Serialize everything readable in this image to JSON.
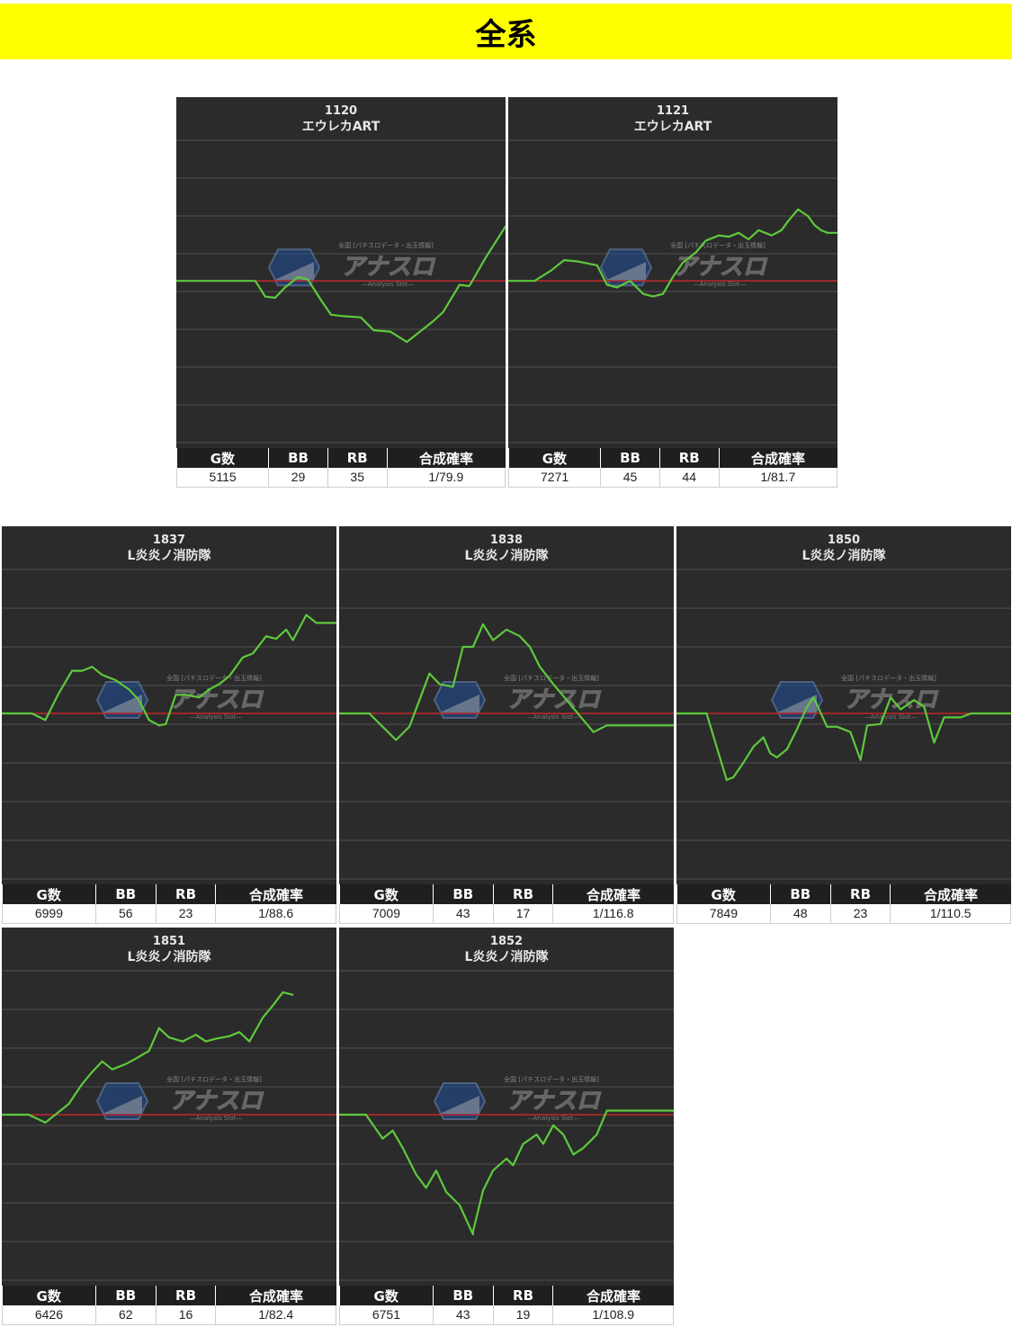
{
  "page_title": "全系",
  "headers": {
    "games": "G数",
    "bb": "BB",
    "rb": "RB",
    "rate": "合成確率"
  },
  "watermark": {
    "logo": "アナスロ",
    "sub": "—Analysis Slot—",
    "tag": "全国 [パチスロデータ・出玉情報]"
  },
  "colors": {
    "banner": "#ffff00",
    "plot_bg": "#2b2b2b",
    "line": "#5ec93c",
    "baseline": "#c0282d",
    "grid": "#444444"
  },
  "chart_data": [
    {
      "type": "line",
      "machine_no": "1120",
      "machine_name": "エウレカART",
      "stats": {
        "games": "5115",
        "bb": "29",
        "rb": "35",
        "rate": "1/79.9"
      },
      "x_range": [
        0,
        1
      ],
      "ylim": [
        -1,
        1
      ],
      "points": [
        [
          0,
          0
        ],
        [
          0.24,
          0
        ],
        [
          0.27,
          -0.12
        ],
        [
          0.3,
          -0.13
        ],
        [
          0.33,
          -0.05
        ],
        [
          0.37,
          0.03
        ],
        [
          0.4,
          0.01
        ],
        [
          0.44,
          -0.15
        ],
        [
          0.47,
          -0.26
        ],
        [
          0.5,
          -0.27
        ],
        [
          0.56,
          -0.28
        ],
        [
          0.6,
          -0.38
        ],
        [
          0.65,
          -0.39
        ],
        [
          0.7,
          -0.47
        ],
        [
          0.73,
          -0.41
        ],
        [
          0.78,
          -0.31
        ],
        [
          0.81,
          -0.24
        ],
        [
          0.86,
          -0.03
        ],
        [
          0.89,
          -0.04
        ],
        [
          0.94,
          0.18
        ],
        [
          1,
          0.42
        ]
      ]
    },
    {
      "type": "line",
      "machine_no": "1121",
      "machine_name": "エウレカART",
      "stats": {
        "games": "7271",
        "bb": "45",
        "rb": "44",
        "rate": "1/81.7"
      },
      "x_range": [
        0,
        1
      ],
      "ylim": [
        -1,
        1
      ],
      "points": [
        [
          0,
          0
        ],
        [
          0.08,
          0
        ],
        [
          0.13,
          0.08
        ],
        [
          0.17,
          0.16
        ],
        [
          0.21,
          0.15
        ],
        [
          0.27,
          0.12
        ],
        [
          0.3,
          -0.03
        ],
        [
          0.33,
          -0.05
        ],
        [
          0.37,
          0
        ],
        [
          0.41,
          -0.1
        ],
        [
          0.44,
          -0.12
        ],
        [
          0.47,
          -0.1
        ],
        [
          0.5,
          0.03
        ],
        [
          0.53,
          0.14
        ],
        [
          0.57,
          0.22
        ],
        [
          0.6,
          0.31
        ],
        [
          0.64,
          0.35
        ],
        [
          0.67,
          0.34
        ],
        [
          0.7,
          0.37
        ],
        [
          0.73,
          0.32
        ],
        [
          0.76,
          0.39
        ],
        [
          0.8,
          0.35
        ],
        [
          0.83,
          0.39
        ],
        [
          0.85,
          0.46
        ],
        [
          0.88,
          0.55
        ],
        [
          0.91,
          0.5
        ],
        [
          0.93,
          0.43
        ],
        [
          0.95,
          0.39
        ],
        [
          0.97,
          0.37
        ],
        [
          1,
          0.37
        ]
      ]
    },
    {
      "type": "line",
      "machine_no": "1837",
      "machine_name": "L炎炎ノ消防隊",
      "stats": {
        "games": "6999",
        "bb": "56",
        "rb": "23",
        "rate": "1/88.6"
      },
      "x_range": [
        0,
        1
      ],
      "ylim": [
        -1,
        1
      ],
      "points": [
        [
          0,
          0
        ],
        [
          0.09,
          0
        ],
        [
          0.13,
          -0.05
        ],
        [
          0.17,
          0.15
        ],
        [
          0.21,
          0.32
        ],
        [
          0.24,
          0.32
        ],
        [
          0.27,
          0.35
        ],
        [
          0.3,
          0.29
        ],
        [
          0.34,
          0.25
        ],
        [
          0.38,
          0.18
        ],
        [
          0.41,
          0.1
        ],
        [
          0.44,
          -0.05
        ],
        [
          0.47,
          -0.09
        ],
        [
          0.49,
          -0.08
        ],
        [
          0.52,
          0.14
        ],
        [
          0.55,
          0.14
        ],
        [
          0.59,
          0.12
        ],
        [
          0.62,
          0.18
        ],
        [
          0.65,
          0.22
        ],
        [
          0.68,
          0.28
        ],
        [
          0.72,
          0.42
        ],
        [
          0.75,
          0.45
        ],
        [
          0.79,
          0.58
        ],
        [
          0.82,
          0.56
        ],
        [
          0.85,
          0.63
        ],
        [
          0.87,
          0.55
        ],
        [
          0.91,
          0.74
        ],
        [
          0.94,
          0.68
        ],
        [
          1,
          0.68
        ]
      ]
    },
    {
      "type": "line",
      "machine_no": "1838",
      "machine_name": "L炎炎ノ消防隊",
      "stats": {
        "games": "7009",
        "bb": "43",
        "rb": "17",
        "rate": "1/116.8"
      },
      "x_range": [
        0,
        1
      ],
      "ylim": [
        -1,
        1
      ],
      "points": [
        [
          0,
          0
        ],
        [
          0.09,
          0
        ],
        [
          0.13,
          -0.1
        ],
        [
          0.17,
          -0.2
        ],
        [
          0.21,
          -0.1
        ],
        [
          0.24,
          0.1
        ],
        [
          0.27,
          0.3
        ],
        [
          0.3,
          0.22
        ],
        [
          0.34,
          0.2
        ],
        [
          0.37,
          0.5
        ],
        [
          0.4,
          0.5
        ],
        [
          0.43,
          0.67
        ],
        [
          0.46,
          0.55
        ],
        [
          0.5,
          0.63
        ],
        [
          0.54,
          0.58
        ],
        [
          0.57,
          0.5
        ],
        [
          0.6,
          0.35
        ],
        [
          0.64,
          0.22
        ],
        [
          0.68,
          0.1
        ],
        [
          0.72,
          -0.02
        ],
        [
          0.76,
          -0.14
        ],
        [
          0.8,
          -0.09
        ],
        [
          1,
          -0.09
        ]
      ]
    },
    {
      "type": "line",
      "machine_no": "1850",
      "machine_name": "L炎炎ノ消防隊",
      "stats": {
        "games": "7849",
        "bb": "48",
        "rb": "23",
        "rate": "1/110.5"
      },
      "x_range": [
        0,
        1
      ],
      "ylim": [
        -1,
        1
      ],
      "points": [
        [
          0,
          0
        ],
        [
          0.09,
          0
        ],
        [
          0.12,
          -0.25
        ],
        [
          0.15,
          -0.5
        ],
        [
          0.17,
          -0.48
        ],
        [
          0.2,
          -0.37
        ],
        [
          0.23,
          -0.25
        ],
        [
          0.26,
          -0.18
        ],
        [
          0.28,
          -0.3
        ],
        [
          0.3,
          -0.33
        ],
        [
          0.33,
          -0.27
        ],
        [
          0.36,
          -0.12
        ],
        [
          0.39,
          0.05
        ],
        [
          0.41,
          0.12
        ],
        [
          0.45,
          -0.1
        ],
        [
          0.48,
          -0.1
        ],
        [
          0.52,
          -0.14
        ],
        [
          0.55,
          -0.35
        ],
        [
          0.57,
          -0.09
        ],
        [
          0.61,
          -0.08
        ],
        [
          0.64,
          0.12
        ],
        [
          0.67,
          0.03
        ],
        [
          0.71,
          0.1
        ],
        [
          0.74,
          0.05
        ],
        [
          0.77,
          -0.22
        ],
        [
          0.8,
          -0.03
        ],
        [
          0.85,
          -0.03
        ],
        [
          0.88,
          0
        ],
        [
          1,
          0
        ]
      ]
    },
    {
      "type": "line",
      "machine_no": "1851",
      "machine_name": "L炎炎ノ消防隊",
      "stats": {
        "games": "6426",
        "bb": "62",
        "rb": "16",
        "rate": "1/82.4"
      },
      "x_range": [
        0,
        1
      ],
      "ylim": [
        -1,
        1
      ],
      "points": [
        [
          0,
          0
        ],
        [
          0.08,
          0
        ],
        [
          0.13,
          -0.06
        ],
        [
          0.16,
          0
        ],
        [
          0.2,
          0.08
        ],
        [
          0.24,
          0.23
        ],
        [
          0.27,
          0.32
        ],
        [
          0.3,
          0.4
        ],
        [
          0.33,
          0.34
        ],
        [
          0.37,
          0.38
        ],
        [
          0.4,
          0.42
        ],
        [
          0.44,
          0.48
        ],
        [
          0.47,
          0.65
        ],
        [
          0.5,
          0.58
        ],
        [
          0.54,
          0.55
        ],
        [
          0.58,
          0.6
        ],
        [
          0.61,
          0.55
        ],
        [
          0.64,
          0.57
        ],
        [
          0.68,
          0.59
        ],
        [
          0.71,
          0.62
        ],
        [
          0.74,
          0.55
        ],
        [
          0.78,
          0.73
        ],
        [
          0.81,
          0.82
        ],
        [
          0.84,
          0.92
        ],
        [
          0.87,
          0.9
        ]
      ]
    },
    {
      "type": "line",
      "machine_no": "1852",
      "machine_name": "L炎炎ノ消防隊",
      "stats": {
        "games": "6751",
        "bb": "43",
        "rb": "19",
        "rate": "1/108.9"
      },
      "x_range": [
        0,
        1
      ],
      "ylim": [
        -1,
        1
      ],
      "points": [
        [
          0,
          0
        ],
        [
          0.08,
          0
        ],
        [
          0.13,
          -0.18
        ],
        [
          0.16,
          -0.12
        ],
        [
          0.19,
          -0.25
        ],
        [
          0.23,
          -0.45
        ],
        [
          0.26,
          -0.55
        ],
        [
          0.29,
          -0.42
        ],
        [
          0.32,
          -0.58
        ],
        [
          0.36,
          -0.68
        ],
        [
          0.4,
          -0.9
        ],
        [
          0.4,
          -0.88
        ],
        [
          0.43,
          -0.57
        ],
        [
          0.46,
          -0.42
        ],
        [
          0.5,
          -0.33
        ],
        [
          0.52,
          -0.38
        ],
        [
          0.55,
          -0.22
        ],
        [
          0.59,
          -0.15
        ],
        [
          0.61,
          -0.22
        ],
        [
          0.64,
          -0.08
        ],
        [
          0.67,
          -0.15
        ],
        [
          0.7,
          -0.3
        ],
        [
          0.73,
          -0.25
        ],
        [
          0.77,
          -0.15
        ],
        [
          0.8,
          0.03
        ],
        [
          0.83,
          0.03
        ],
        [
          1,
          0.03
        ]
      ]
    }
  ]
}
